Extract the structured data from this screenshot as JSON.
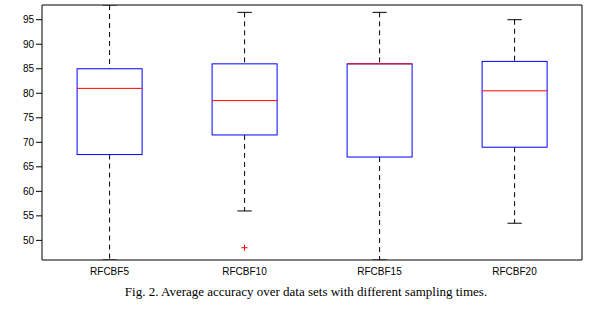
{
  "chart_data": {
    "type": "box",
    "caption": "Fig. 2. Average accuracy over data sets with different sampling times.",
    "categories": [
      "RFCBF5",
      "RFCBF10",
      "RFCBF15",
      "RFCBF20"
    ],
    "min": [
      46,
      56,
      46,
      53.5
    ],
    "q1": [
      67.5,
      71.5,
      67,
      69
    ],
    "median": [
      81,
      78.5,
      86,
      80.5
    ],
    "q3": [
      85,
      86,
      86,
      86.5
    ],
    "max": [
      98,
      96.5,
      96.5,
      95
    ],
    "outliers": [
      [],
      [
        48.5
      ],
      [],
      []
    ],
    "color": "#0000ff",
    "ylim": [
      46,
      98
    ],
    "yticks": [
      50,
      55,
      60,
      65,
      70,
      75,
      80,
      85,
      90,
      95
    ]
  }
}
